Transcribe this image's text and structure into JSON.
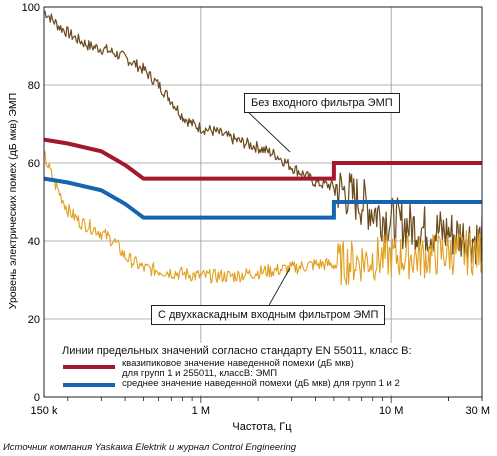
{
  "chart_data": {
    "type": "line",
    "xlabel": "Частота, Гц",
    "ylabel": "Уровень электрических помех (дБ мкв) ЭМП",
    "x_scale": "log",
    "xlim": [
      150000,
      30000000
    ],
    "ylim": [
      0,
      100
    ],
    "x_ticks": [
      {
        "value": 150000,
        "label": "150 k"
      },
      {
        "value": 1000000,
        "label": "1 M"
      },
      {
        "value": 10000000,
        "label": "10 M"
      },
      {
        "value": 30000000,
        "label": "30 M"
      }
    ],
    "y_ticks": [
      0,
      20,
      40,
      60,
      80,
      100
    ],
    "grid": true,
    "legend_title": "Линии предельных значений согласно стандарту EN 55011, класс В:",
    "series": [
      {
        "kind": "limit",
        "color": "#a3182d",
        "name": "квазипиковое значение наведенной помехи (дБ мкв) для групп 1 и 255011, классВ: ЭМП",
        "points": [
          [
            150000,
            66
          ],
          [
            200000,
            65
          ],
          [
            300000,
            63
          ],
          [
            400000,
            59.5
          ],
          [
            500000,
            56
          ],
          [
            5000000,
            56
          ],
          [
            5000000,
            60
          ],
          [
            30000000,
            60
          ]
        ]
      },
      {
        "kind": "limit",
        "color": "#1565b0",
        "name": "среднее значение наведенной помехи (дБ мкв) для групп 1 и 2",
        "points": [
          [
            150000,
            56
          ],
          [
            200000,
            55
          ],
          [
            300000,
            53
          ],
          [
            400000,
            49.5
          ],
          [
            500000,
            46
          ],
          [
            5000000,
            46
          ],
          [
            5000000,
            50
          ],
          [
            30000000,
            50
          ]
        ]
      },
      {
        "kind": "measurement",
        "color": "#6b4a1e",
        "label": "Без входного фильтра ЭМП",
        "points": [
          [
            150000,
            99
          ],
          [
            180000,
            95
          ],
          [
            220000,
            92
          ],
          [
            260000,
            90
          ],
          [
            320000,
            89
          ],
          [
            400000,
            87
          ],
          [
            500000,
            84
          ],
          [
            600000,
            80
          ],
          [
            700000,
            76
          ],
          [
            800000,
            72
          ],
          [
            900000,
            70
          ],
          [
            1000000,
            69
          ],
          [
            1200000,
            68
          ],
          [
            1500000,
            66
          ],
          [
            2000000,
            64
          ],
          [
            2500000,
            62
          ],
          [
            3000000,
            59
          ],
          [
            3500000,
            57
          ],
          [
            4000000,
            55
          ],
          [
            5000000,
            54
          ],
          [
            6000000,
            52
          ],
          [
            7000000,
            50
          ],
          [
            8000000,
            48
          ],
          [
            10000000,
            45
          ],
          [
            15000000,
            43
          ],
          [
            20000000,
            42
          ],
          [
            30000000,
            40
          ]
        ]
      },
      {
        "kind": "measurement",
        "color": "#e0a020",
        "label": "С двухкаскадным входным фильтром ЭМП",
        "points": [
          [
            150000,
            62
          ],
          [
            170000,
            55
          ],
          [
            200000,
            48
          ],
          [
            230000,
            45
          ],
          [
            280000,
            43
          ],
          [
            350000,
            40
          ],
          [
            400000,
            36
          ],
          [
            500000,
            33
          ],
          [
            700000,
            32
          ],
          [
            1000000,
            31
          ],
          [
            1500000,
            31
          ],
          [
            2000000,
            32
          ],
          [
            3000000,
            33
          ],
          [
            4000000,
            34
          ],
          [
            5000000,
            34
          ],
          [
            7000000,
            35
          ],
          [
            10000000,
            36
          ],
          [
            15000000,
            36
          ],
          [
            20000000,
            37
          ],
          [
            30000000,
            37
          ]
        ]
      }
    ]
  },
  "callouts": {
    "top": "Без входного фильтра ЭМП",
    "bottom": "С двухкаскадным входным фильтром ЭМП"
  },
  "legend": {
    "title": "Линии предельных значений согласно стандарту EN 55011, класс В:",
    "quasi_text_line1": "квазипиковое значение наведенной помехи (дБ мкв)",
    "quasi_text_line2": "для групп 1 и 255011, классВ: ЭМП",
    "avg_text": "среднее значение наведенной помехи (дБ мкв) для групп 1 и 2"
  },
  "source_note": "Источник компания Yaskawa Elektrik и журнал Control Engineering"
}
